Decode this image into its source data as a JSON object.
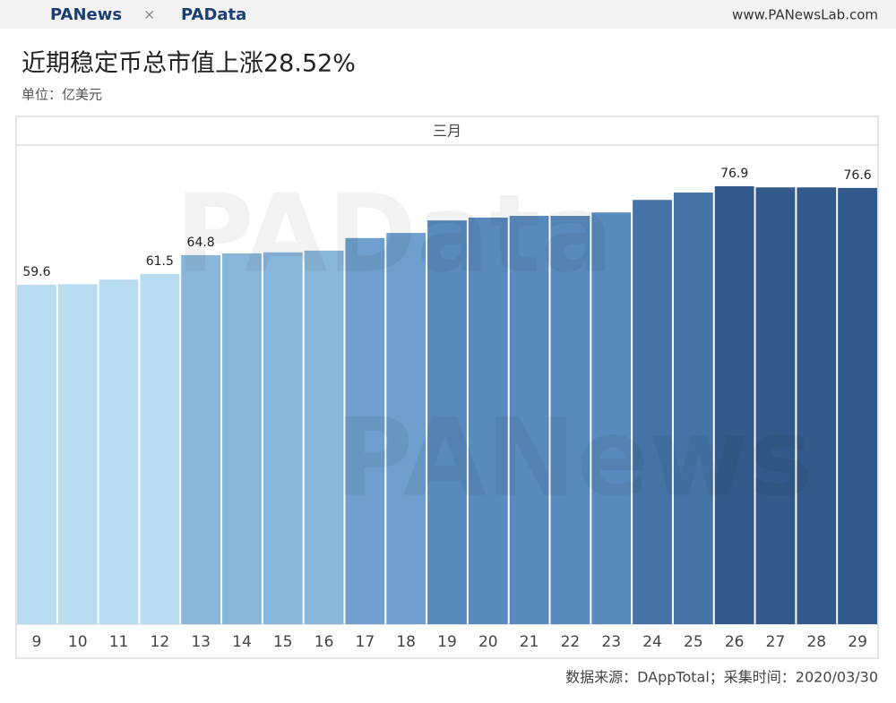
{
  "header": {
    "logo_left": "PANews",
    "separator": "×",
    "logo_right": "PAData",
    "site": "www.PANewsLab.com"
  },
  "chart_data": {
    "type": "bar",
    "title": "近期稳定币总市值上涨28.52%",
    "subtitle": "单位：亿美元",
    "facet": "三月",
    "source": "数据来源：DAppTotal；采集时间：2020/03/30",
    "watermarks": [
      "PAData",
      "PANews"
    ],
    "categories": [
      "9",
      "10",
      "11",
      "12",
      "13",
      "14",
      "15",
      "16",
      "17",
      "18",
      "19",
      "20",
      "21",
      "22",
      "23",
      "24",
      "25",
      "26",
      "27",
      "28",
      "29"
    ],
    "values": [
      59.6,
      59.7,
      60.5,
      61.5,
      64.8,
      65.1,
      65.3,
      65.6,
      67.8,
      68.7,
      70.9,
      71.4,
      71.7,
      71.7,
      72.3,
      74.5,
      75.8,
      76.9,
      76.7,
      76.7,
      76.6
    ],
    "value_labels": [
      "59.6",
      null,
      null,
      "61.5",
      "64.8",
      null,
      null,
      null,
      null,
      null,
      null,
      null,
      null,
      null,
      null,
      null,
      null,
      "76.9",
      null,
      null,
      "76.6"
    ],
    "colors": [
      "#b6dbf0",
      "#b6dbf0",
      "#b6dbf0",
      "#b6dbf0",
      "#85b5d9",
      "#85b5d9",
      "#85b5d9",
      "#85b5d9",
      "#6a9cca",
      "#6a9cca",
      "#5486bb",
      "#5486bb",
      "#5486bb",
      "#5486bb",
      "#5486bb",
      "#3f6ea3",
      "#3f6ea3",
      "#2c5586",
      "#2c5586",
      "#2c5586",
      "#2c5586"
    ]
  }
}
